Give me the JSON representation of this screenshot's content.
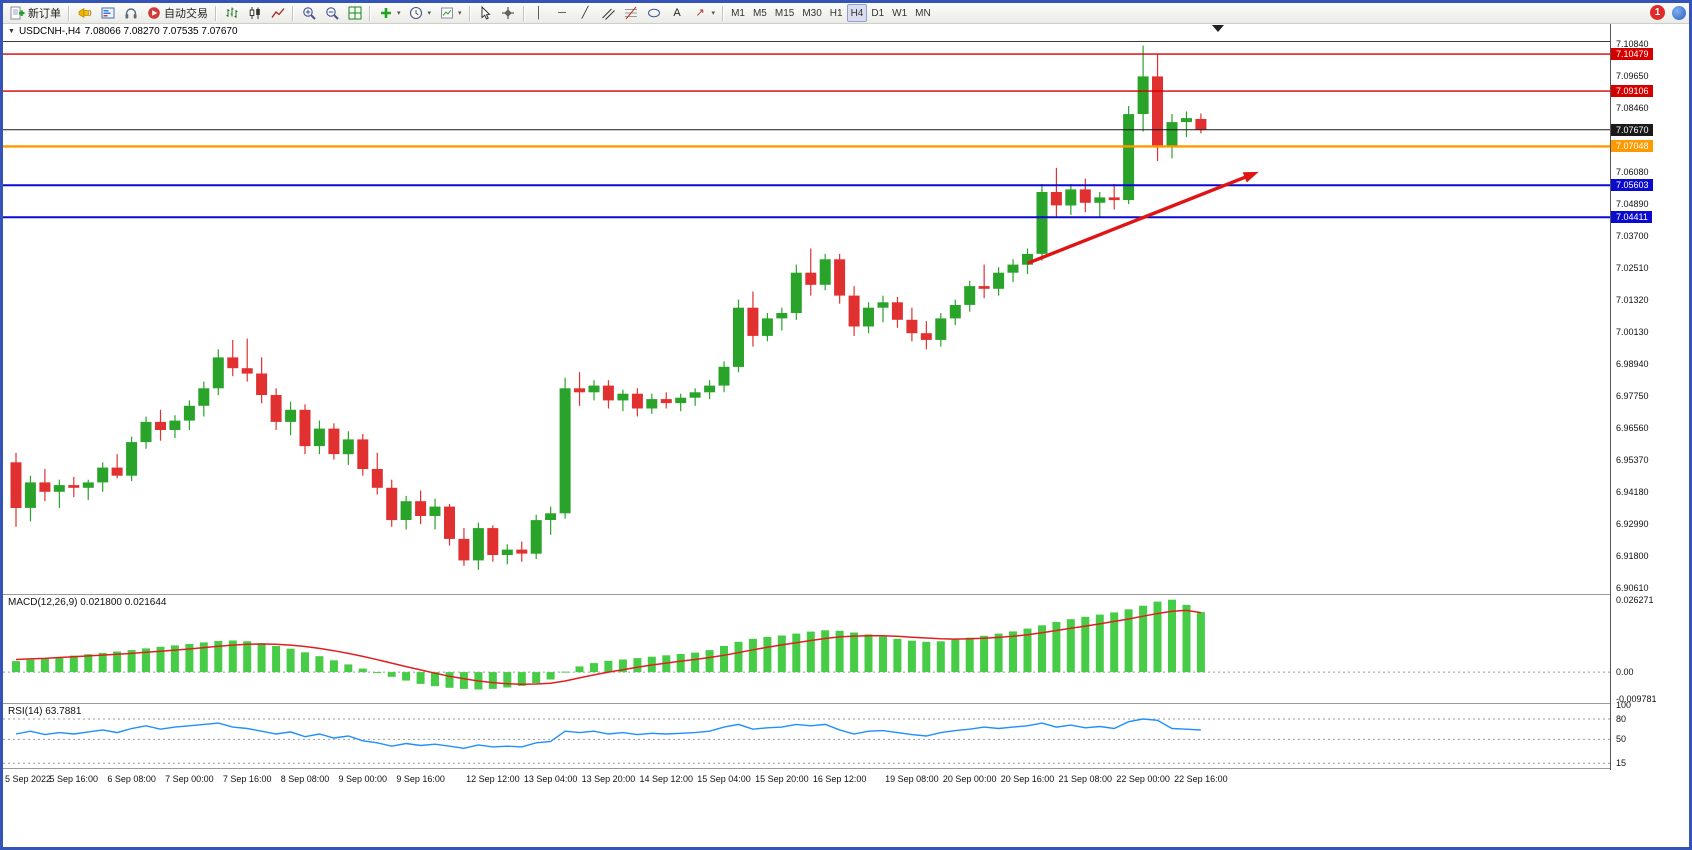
{
  "window": {
    "badge_count": "1"
  },
  "toolbar": {
    "groups": [
      {
        "items": [
          {
            "name": "new-order-button",
            "glyph": "new-order",
            "label": "新订单"
          }
        ]
      },
      {
        "items": [
          {
            "name": "news-button",
            "glyph": "horn"
          },
          {
            "name": "market-depth-button",
            "glyph": "depth"
          },
          {
            "name": "support-button",
            "glyph": "headset"
          },
          {
            "name": "autotrading-button",
            "glyph": "autotrading",
            "label": "自动交易"
          }
        ]
      },
      {
        "items": [
          {
            "name": "bar-chart-button",
            "glyph": "bars"
          },
          {
            "name": "candlestick-chart-button",
            "glyph": "candles"
          },
          {
            "name": "line-chart-button",
            "glyph": "line"
          }
        ]
      },
      {
        "items": [
          {
            "name": "zoom-in-button",
            "glyph": "zoom-in"
          },
          {
            "name": "zoom-out-button",
            "glyph": "zoom-out"
          },
          {
            "name": "tile-windows-button",
            "glyph": "tile"
          }
        ]
      },
      {
        "items": [
          {
            "name": "indicators-button",
            "glyph": "indicators",
            "dropdown": true
          },
          {
            "name": "periods-button",
            "glyph": "clock",
            "dropdown": true
          },
          {
            "name": "templates-button",
            "glyph": "template",
            "dropdown": true
          }
        ]
      },
      {
        "items": [
          {
            "name": "cursor-button",
            "glyph": "cursor"
          },
          {
            "name": "crosshair-button",
            "glyph": "crosshair"
          }
        ]
      },
      {
        "items": [
          {
            "name": "vertical-line-button",
            "glyph": "vline"
          },
          {
            "name": "horizontal-line-button",
            "glyph": "hline"
          },
          {
            "name": "trendline-button",
            "glyph": "trendline"
          },
          {
            "name": "channel-button",
            "glyph": "channel"
          },
          {
            "name": "fibonacci-button",
            "glyph": "fibonacci"
          },
          {
            "name": "shapes-button",
            "glyph": "shapes"
          },
          {
            "name": "text-button",
            "glyph": "text"
          },
          {
            "name": "arrows-button",
            "glyph": "arrows",
            "dropdown": true
          }
        ]
      },
      {
        "items": [
          {
            "name": "tf-m1-button",
            "label": "M1",
            "tf": true
          },
          {
            "name": "tf-m5-button",
            "label": "M5",
            "tf": true
          },
          {
            "name": "tf-m15-button",
            "label": "M15",
            "tf": true
          },
          {
            "name": "tf-m30-button",
            "label": "M30",
            "tf": true
          },
          {
            "name": "tf-h1-button",
            "label": "H1",
            "tf": true
          },
          {
            "name": "tf-h4-button",
            "label": "H4",
            "tf": true,
            "active": true
          },
          {
            "name": "tf-d1-button",
            "label": "D1",
            "tf": true
          },
          {
            "name": "tf-w1-button",
            "label": "W1",
            "tf": true
          },
          {
            "name": "tf-mn-button",
            "label": "MN",
            "tf": true
          }
        ]
      }
    ]
  },
  "chart": {
    "symbol_period": "USDCNH-,H4",
    "ohlc_text": "7.08066 7.08270 7.07535 7.07670",
    "price_scale_labels": [
      "7.10840",
      "7.09650",
      "7.08460",
      "7.06080",
      "7.04890",
      "7.03700",
      "7.02510",
      "7.01320",
      "7.00130",
      "6.98940",
      "6.97750",
      "6.96560",
      "6.95370",
      "6.94180",
      "6.92990",
      "6.91800",
      "6.90610"
    ],
    "lines": [
      {
        "price": 7.10479,
        "label": "7.10479",
        "color": "#d40000",
        "width": 1.4
      },
      {
        "price": 7.09106,
        "label": "7.09106",
        "color": "#d40000",
        "width": 1.4
      },
      {
        "price": 7.07048,
        "label": "7.07048",
        "color": "#ff9900",
        "width": 2.4
      },
      {
        "price": 7.05603,
        "label": "7.05603",
        "color": "#0b0bd0",
        "width": 2
      },
      {
        "price": 7.04411,
        "label": "7.04411",
        "color": "#0b0bd0",
        "width": 2
      }
    ],
    "current_price": {
      "price": 7.0767,
      "label": "7.07670",
      "color": "#1a1a1a",
      "width": 1
    },
    "trend_arrow": {
      "from_bar": 70,
      "from_price": 7.027,
      "to_bar": 86,
      "to_price": 7.061,
      "color": "#e01414"
    },
    "time_labels": [
      {
        "text": "5 Sep 2022",
        "bar": 0
      },
      {
        "text": "5 Sep 16:00",
        "bar": 4
      },
      {
        "text": "6 Sep 08:00",
        "bar": 8
      },
      {
        "text": "7 Sep 00:00",
        "bar": 12
      },
      {
        "text": "7 Sep 16:00",
        "bar": 16
      },
      {
        "text": "8 Sep 08:00",
        "bar": 20
      },
      {
        "text": "9 Sep 00:00",
        "bar": 24
      },
      {
        "text": "9 Sep 16:00",
        "bar": 28
      },
      {
        "text": "12 Sep 12:00",
        "bar": 33
      },
      {
        "text": "13 Sep 04:00",
        "bar": 37
      },
      {
        "text": "13 Sep 20:00",
        "bar": 41
      },
      {
        "text": "14 Sep 12:00",
        "bar": 45
      },
      {
        "text": "15 Sep 04:00",
        "bar": 49
      },
      {
        "text": "15 Sep 20:00",
        "bar": 53
      },
      {
        "text": "16 Sep 12:00",
        "bar": 57
      },
      {
        "text": "19 Sep 08:00",
        "bar": 62
      },
      {
        "text": "20 Sep 00:00",
        "bar": 66
      },
      {
        "text": "20 Sep 16:00",
        "bar": 70
      },
      {
        "text": "21 Sep 08:00",
        "bar": 74
      },
      {
        "text": "22 Sep 00:00",
        "bar": 78
      },
      {
        "text": "22 Sep 16:00",
        "bar": 82
      }
    ]
  },
  "chart_data": {
    "type": "candlestick",
    "symbol": "USDCNH",
    "timeframe": "H4",
    "title": "USDCNH-,H4 7.08066 7.08270 7.07535 7.07670",
    "up_color": "#29a329",
    "down_color": "#e03030",
    "price_range": {
      "top": 7.116,
      "bottom": 6.904
    },
    "candles": [
      [
        6.953,
        6.9565,
        6.929,
        6.936
      ],
      [
        6.936,
        6.948,
        6.931,
        6.9455
      ],
      [
        6.9455,
        6.9505,
        6.9385,
        6.942
      ],
      [
        6.942,
        6.9465,
        6.936,
        6.9445
      ],
      [
        6.9445,
        6.9475,
        6.94,
        6.9435
      ],
      [
        6.9435,
        6.9465,
        6.939,
        6.9455
      ],
      [
        6.9455,
        6.953,
        6.942,
        6.951
      ],
      [
        6.951,
        6.956,
        6.947,
        6.948
      ],
      [
        6.948,
        6.9625,
        6.946,
        6.9605
      ],
      [
        6.9605,
        6.97,
        6.958,
        6.968
      ],
      [
        6.968,
        6.9725,
        6.961,
        6.965
      ],
      [
        6.965,
        6.9705,
        6.962,
        6.9685
      ],
      [
        6.9685,
        6.976,
        6.965,
        6.974
      ],
      [
        6.974,
        6.983,
        6.97,
        6.9805
      ],
      [
        6.9805,
        6.995,
        6.978,
        6.992
      ],
      [
        6.992,
        6.9985,
        6.985,
        6.988
      ],
      [
        6.988,
        6.999,
        6.983,
        6.986
      ],
      [
        6.986,
        6.992,
        6.975,
        6.978
      ],
      [
        6.978,
        6.9805,
        6.965,
        6.968
      ],
      [
        6.968,
        6.9755,
        6.963,
        6.9725
      ],
      [
        6.9725,
        6.9745,
        6.956,
        6.959
      ],
      [
        6.959,
        6.9685,
        6.956,
        6.9655
      ],
      [
        6.9655,
        6.9675,
        6.954,
        6.956
      ],
      [
        6.956,
        6.9645,
        6.952,
        6.9615
      ],
      [
        6.9615,
        6.9635,
        6.948,
        6.9505
      ],
      [
        6.9505,
        6.9565,
        6.941,
        6.9435
      ],
      [
        6.9435,
        6.9465,
        6.929,
        6.9315
      ],
      [
        6.9315,
        6.9405,
        6.928,
        6.9385
      ],
      [
        6.9385,
        6.9425,
        6.93,
        6.933
      ],
      [
        6.933,
        6.9395,
        6.928,
        6.9365
      ],
      [
        6.9365,
        6.9375,
        6.922,
        6.9245
      ],
      [
        6.9245,
        6.9285,
        6.9145,
        6.9165
      ],
      [
        6.9165,
        6.9305,
        6.913,
        6.9285
      ],
      [
        6.9285,
        6.9295,
        6.916,
        6.9185
      ],
      [
        6.9185,
        6.9225,
        6.915,
        6.9205
      ],
      [
        6.9205,
        6.9235,
        6.916,
        6.919
      ],
      [
        6.919,
        6.9335,
        6.917,
        6.9315
      ],
      [
        6.9315,
        6.9365,
        6.926,
        6.934
      ],
      [
        6.934,
        6.9845,
        6.932,
        6.9805
      ],
      [
        6.9805,
        6.9865,
        6.974,
        6.979
      ],
      [
        6.979,
        6.9835,
        6.976,
        6.9815
      ],
      [
        6.9815,
        6.9835,
        6.973,
        6.976
      ],
      [
        6.976,
        6.98,
        6.972,
        6.9785
      ],
      [
        6.9785,
        6.9805,
        6.97,
        6.973
      ],
      [
        6.973,
        6.9785,
        6.971,
        6.9765
      ],
      [
        6.9765,
        6.979,
        6.973,
        6.975
      ],
      [
        6.975,
        6.9785,
        6.972,
        6.977
      ],
      [
        6.977,
        6.9805,
        6.974,
        6.979
      ],
      [
        6.979,
        6.9835,
        6.9765,
        6.9815
      ],
      [
        6.9815,
        6.9905,
        6.979,
        6.9885
      ],
      [
        6.9885,
        7.0135,
        6.9865,
        7.0105
      ],
      [
        7.0105,
        7.0165,
        6.996,
        7.0
      ],
      [
        7.0,
        7.0085,
        6.998,
        7.0065
      ],
      [
        7.0065,
        7.0105,
        7.002,
        7.0085
      ],
      [
        7.0085,
        7.0265,
        7.006,
        7.0235
      ],
      [
        7.0235,
        7.0325,
        7.015,
        7.019
      ],
      [
        7.019,
        7.0305,
        7.017,
        7.0285
      ],
      [
        7.0285,
        7.0305,
        7.012,
        7.015
      ],
      [
        7.015,
        7.0185,
        7.0,
        7.0035
      ],
      [
        7.0035,
        7.0125,
        7.001,
        7.0105
      ],
      [
        7.0105,
        7.015,
        7.005,
        7.0125
      ],
      [
        7.0125,
        7.0145,
        7.003,
        7.006
      ],
      [
        7.006,
        7.0105,
        6.998,
        7.001
      ],
      [
        7.001,
        7.0055,
        6.995,
        6.9985
      ],
      [
        6.9985,
        7.0085,
        6.996,
        7.0065
      ],
      [
        7.0065,
        7.0135,
        7.004,
        7.0115
      ],
      [
        7.0115,
        7.0205,
        7.009,
        7.0185
      ],
      [
        7.0185,
        7.0265,
        7.014,
        7.0175
      ],
      [
        7.0175,
        7.0255,
        7.015,
        7.0235
      ],
      [
        7.0235,
        7.0285,
        7.02,
        7.0265
      ],
      [
        7.0265,
        7.0325,
        7.023,
        7.0305
      ],
      [
        7.0305,
        7.0565,
        7.028,
        7.0535
      ],
      [
        7.0535,
        7.0625,
        7.044,
        7.0485
      ],
      [
        7.0485,
        7.0565,
        7.045,
        7.0545
      ],
      [
        7.0545,
        7.0585,
        7.046,
        7.0495
      ],
      [
        7.0495,
        7.0535,
        7.044,
        7.0515
      ],
      [
        7.0515,
        7.0565,
        7.047,
        7.0505
      ],
      [
        7.0505,
        7.0855,
        7.049,
        7.0825
      ],
      [
        7.0825,
        7.108,
        7.076,
        7.0965
      ],
      [
        7.0965,
        7.105,
        7.065,
        7.0705
      ],
      [
        7.0705,
        7.0825,
        7.066,
        7.0795
      ],
      [
        7.0795,
        7.0835,
        7.074,
        7.081
      ],
      [
        7.08066,
        7.0827,
        7.07535,
        7.0767
      ]
    ],
    "indicators": {
      "macd": {
        "label": "MACD(12,26,9) 0.021800 0.021644",
        "value": 0.0218,
        "signal_value": 0.021644,
        "histogram_color": "#47cc47",
        "signal_color": "#e02020",
        "scale_labels": [
          "0.026271",
          "0.00",
          "-0.009781"
        ],
        "range": {
          "max": 0.028,
          "min": -0.0112
        },
        "histogram": [
          0.004,
          0.0045,
          0.005,
          0.0055,
          0.006,
          0.0065,
          0.007,
          0.0075,
          0.008,
          0.0086,
          0.0092,
          0.0097,
          0.0102,
          0.0108,
          0.0113,
          0.0115,
          0.0112,
          0.0105,
          0.0095,
          0.0085,
          0.0072,
          0.0058,
          0.0043,
          0.0028,
          0.0013,
          -0.0002,
          -0.0017,
          -0.0031,
          -0.0043,
          -0.0051,
          -0.0057,
          -0.0061,
          -0.0063,
          -0.0061,
          -0.0056,
          -0.005,
          -0.004,
          -0.0027,
          0.0002,
          0.0021,
          0.0033,
          0.0041,
          0.0046,
          0.0051,
          0.0056,
          0.0061,
          0.0066,
          0.0071,
          0.008,
          0.0095,
          0.011,
          0.0121,
          0.0128,
          0.0133,
          0.014,
          0.0147,
          0.0152,
          0.015,
          0.0144,
          0.0137,
          0.0129,
          0.0121,
          0.0114,
          0.011,
          0.0112,
          0.0118,
          0.0125,
          0.0132,
          0.014,
          0.0148,
          0.0158,
          0.017,
          0.0182,
          0.0192,
          0.0201,
          0.0209,
          0.0217,
          0.0228,
          0.0241,
          0.0256,
          0.0263,
          0.0244,
          0.0218
        ],
        "signal": [
          0.0046,
          0.0048,
          0.005,
          0.0053,
          0.0056,
          0.0059,
          0.0062,
          0.0065,
          0.0068,
          0.0072,
          0.0076,
          0.008,
          0.0084,
          0.0089,
          0.0094,
          0.0098,
          0.0101,
          0.0102,
          0.0101,
          0.0098,
          0.0093,
          0.0086,
          0.0078,
          0.0068,
          0.0057,
          0.0045,
          0.0033,
          0.002,
          0.0008,
          -0.0004,
          -0.0015,
          -0.0024,
          -0.0032,
          -0.0038,
          -0.0042,
          -0.0044,
          -0.0043,
          -0.004,
          -0.0032,
          -0.0021,
          -0.001,
          0.0,
          0.0009,
          0.0018,
          0.0026,
          0.0033,
          0.004,
          0.0046,
          0.0053,
          0.0061,
          0.0071,
          0.0081,
          0.009,
          0.0099,
          0.0107,
          0.0115,
          0.0122,
          0.0128,
          0.0131,
          0.0132,
          0.0132,
          0.013,
          0.0127,
          0.0124,
          0.0121,
          0.012,
          0.0121,
          0.0123,
          0.0126,
          0.013,
          0.0136,
          0.0143,
          0.0151,
          0.0159,
          0.0167,
          0.0175,
          0.0184,
          0.0193,
          0.0203,
          0.0213,
          0.0221,
          0.0224,
          0.0216
        ]
      },
      "rsi": {
        "label": "RSI(14) 63.7881",
        "value": 63.7881,
        "line_color": "#1e90ff",
        "scale_labels": [
          "100",
          "80",
          "50",
          "15"
        ],
        "levels": [
          80,
          50,
          15
        ],
        "scale_max": 102,
        "scale_min": 8,
        "values": [
          58,
          62,
          57,
          60,
          58,
          61,
          64,
          60,
          66,
          70,
          65,
          68,
          70,
          72,
          74,
          68,
          66,
          62,
          58,
          61,
          54,
          58,
          52,
          55,
          48,
          45,
          40,
          44,
          41,
          43,
          40,
          37,
          42,
          39,
          40,
          39,
          45,
          47,
          62,
          60,
          62,
          58,
          60,
          57,
          59,
          58,
          59,
          60,
          62,
          68,
          72,
          65,
          67,
          68,
          72,
          70,
          72,
          64,
          58,
          62,
          63,
          60,
          57,
          55,
          60,
          63,
          65,
          68,
          66,
          68,
          70,
          74,
          68,
          71,
          67,
          69,
          66,
          76,
          80,
          78,
          66,
          65,
          63.8
        ]
      }
    }
  }
}
